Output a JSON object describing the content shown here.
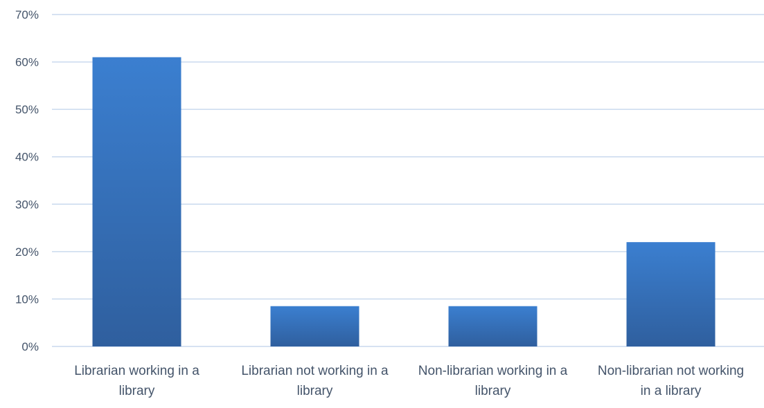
{
  "chart_data": {
    "type": "bar",
    "title": "",
    "xlabel": "",
    "ylabel": "",
    "categories": [
      [
        "Librarian working in a",
        "library"
      ],
      [
        "Librarian not working in a",
        "library"
      ],
      [
        "Non-librarian working in a",
        "library"
      ],
      [
        "Non-librarian not working",
        "in a library"
      ]
    ],
    "values": [
      61,
      8.5,
      8.5,
      22
    ],
    "value_unit": "%",
    "ylim": [
      0,
      70
    ],
    "yticks": [
      0,
      10,
      20,
      30,
      40,
      50,
      60,
      70
    ],
    "ytick_labels": [
      "0%",
      "10%",
      "20%",
      "30%",
      "40%",
      "50%",
      "60%",
      "70%"
    ],
    "grid": true,
    "legend": "none",
    "colors": {
      "bar_top": "#3b7fd0",
      "bar_bottom": "#2f5f9e",
      "grid": "#c9d9ee",
      "text": "#44546a"
    }
  }
}
